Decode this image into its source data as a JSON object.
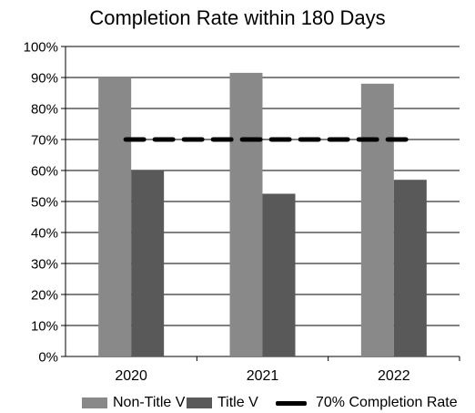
{
  "chart_data": {
    "type": "bar",
    "title": "Completion Rate within 180 Days",
    "xlabel": "",
    "ylabel": "",
    "categories": [
      "2020",
      "2021",
      "2022"
    ],
    "series": [
      {
        "name": "Non-Title V",
        "values": [
          0.9,
          0.915,
          0.88
        ],
        "color": "#898989"
      },
      {
        "name": "Title V",
        "values": [
          0.6,
          0.525,
          0.57
        ],
        "color": "#595959"
      }
    ],
    "reference_line": {
      "name": "70% Completion Rate",
      "value": 0.7,
      "style": "dashed",
      "color": "#000000"
    },
    "ylim": [
      0,
      1
    ],
    "yticks": [
      "0%",
      "10%",
      "20%",
      "30%",
      "40%",
      "50%",
      "60%",
      "70%",
      "80%",
      "90%",
      "100%"
    ],
    "grid": true,
    "legend_position": "bottom"
  }
}
